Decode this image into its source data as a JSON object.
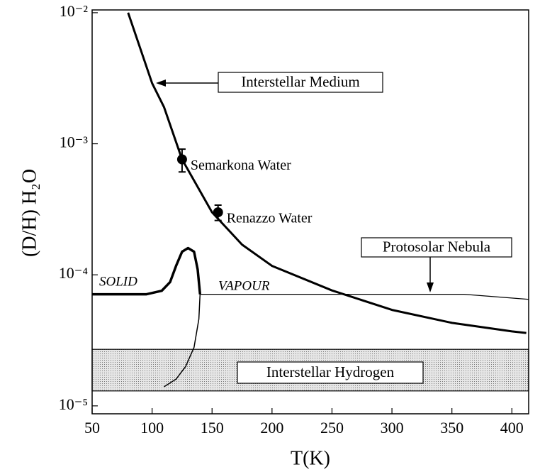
{
  "chart_data": {
    "type": "line",
    "xlabel": "T(K)",
    "ylabel": "(D/H) H₂O",
    "xlim": [
      50,
      414
    ],
    "ylim": [
      8.7e-06,
      0.0105
    ],
    "log_y": true,
    "xticks": [
      50,
      100,
      150,
      200,
      250,
      300,
      350,
      400
    ],
    "yticks": [
      {
        "value": 0.01,
        "label": "10⁻²"
      },
      {
        "value": 0.001,
        "label": "10⁻³"
      },
      {
        "value": 0.0001,
        "label": "10⁻⁴"
      },
      {
        "value": 1e-05,
        "label": "10⁻⁵"
      }
    ],
    "series": [
      {
        "color": "#000",
        "width": 3,
        "x": [
          80,
          100,
          110,
          125,
          150,
          175,
          200,
          250,
          300,
          350,
          400,
          412
        ],
        "values": [
          0.01,
          0.0029,
          0.0019,
          0.00076,
          0.0003,
          0.00017,
          0.000117,
          7.6e-05,
          5.4e-05,
          4.3e-05,
          3.7e-05,
          3.6e-05
        ]
      },
      {
        "color": "#000",
        "width": 3.5,
        "x": [
          50,
          95,
          108,
          115,
          120,
          125,
          130,
          135,
          138,
          140
        ],
        "values": [
          7.1e-05,
          7.1e-05,
          7.55e-05,
          8.8e-05,
          0.000117,
          0.00015,
          0.00016,
          0.00015,
          0.00011,
          7.1e-05
        ]
      },
      {
        "color": "#000",
        "width": 1.5,
        "x": [
          140,
          139,
          135,
          128,
          120,
          110
        ],
        "values": [
          7.1e-05,
          4.6e-05,
          2.8e-05,
          2e-05,
          1.6e-05,
          1.4e-05
        ]
      },
      {
        "color": "#000",
        "width": 1.2,
        "x": [
          140,
          360,
          414
        ],
        "values": [
          7.1e-05,
          7.1e-05,
          6.5e-05
        ]
      }
    ],
    "points": [
      {
        "label": "Semarkona Water",
        "x": 125,
        "value": 0.00076,
        "error": 0.00015
      },
      {
        "label": "Renazzo Water",
        "x": 155,
        "value": 0.0003,
        "error": 4e-05
      }
    ],
    "band": {
      "label": "Interstellar Hydrogen",
      "range": [
        1.3e-05,
        2.7e-05
      ],
      "color": "#d0d0d0"
    },
    "annotations": [
      "Interstellar Medium",
      "Protosolar Nebula",
      "SOLID",
      "VAPOUR"
    ]
  }
}
